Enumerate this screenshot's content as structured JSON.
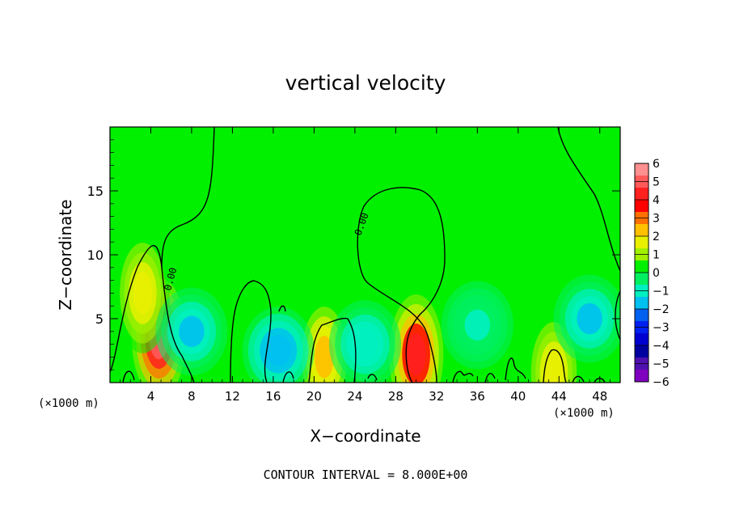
{
  "chart_data": {
    "type": "heatmap",
    "title": "vertical velocity",
    "xlabel": "X−coordinate",
    "ylabel": "Z−coordinate",
    "x_unit": "(×1000 m)",
    "x_unit_right": "(×1000 m)",
    "xlim": [
      0,
      50
    ],
    "ylim": [
      0,
      20
    ],
    "x_ticks": [
      4,
      8,
      12,
      16,
      20,
      24,
      28,
      32,
      36,
      40,
      44,
      48
    ],
    "y_ticks": [
      5,
      10,
      15
    ],
    "contour_interval_text": "CONTOUR INTERVAL = 8.000E+00",
    "contour_labels": [
      "0.00",
      "0.00"
    ],
    "colorbar": {
      "min": -6,
      "max": 6,
      "tick_labels": [
        "6",
        "5",
        "4",
        "3",
        "2",
        "1",
        "0",
        "−1",
        "−2",
        "−3",
        "−4",
        "−5",
        "−6"
      ],
      "colors": [
        "#ff9090",
        "#ff5a5a",
        "#ff2020",
        "#ff0000",
        "#ff7000",
        "#ffc000",
        "#e8f000",
        "#a0f000",
        "#00f000",
        "#00f060",
        "#00f0c0",
        "#00c0f0",
        "#0060f0",
        "#0020f0",
        "#0000d0",
        "#0000a0",
        "#5010b0",
        "#8000c0"
      ]
    },
    "features": [
      {
        "kind": "updraft",
        "x": 4.8,
        "z": 3.5,
        "peak": 5.5
      },
      {
        "kind": "updraft",
        "x": 3.2,
        "z": 7.0,
        "peak": 2.0
      },
      {
        "kind": "updraft",
        "x": 30.0,
        "z": 2.2,
        "peak": 4.5
      },
      {
        "kind": "updraft",
        "x": 21.0,
        "z": 2.0,
        "peak": 2.5
      },
      {
        "kind": "updraft",
        "x": 43.5,
        "z": 0.8,
        "peak": 2.0
      },
      {
        "kind": "downdraft",
        "x": 8.0,
        "z": 4.0,
        "peak": -1.5
      },
      {
        "kind": "downdraft",
        "x": 16.5,
        "z": 2.5,
        "peak": -2.0
      },
      {
        "kind": "downdraft",
        "x": 25.0,
        "z": 3.0,
        "peak": -1.2
      },
      {
        "kind": "downdraft",
        "x": 47.0,
        "z": 5.0,
        "peak": -1.5
      },
      {
        "kind": "downdraft",
        "x": 36.0,
        "z": 4.5,
        "peak": -0.8
      }
    ]
  }
}
